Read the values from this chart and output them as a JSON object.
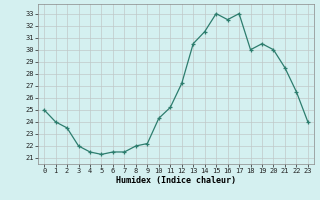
{
  "x": [
    0,
    1,
    2,
    3,
    4,
    5,
    6,
    7,
    8,
    9,
    10,
    11,
    12,
    13,
    14,
    15,
    16,
    17,
    18,
    19,
    20,
    21,
    22,
    23
  ],
  "y": [
    25,
    24,
    23.5,
    22,
    21.5,
    21.3,
    21.5,
    21.5,
    22,
    22.2,
    24.3,
    25.2,
    27.2,
    30.5,
    31.5,
    33.0,
    32.5,
    33.0,
    30.0,
    30.5,
    30.0,
    28.5,
    26.5,
    24.0
  ],
  "line_color": "#2d7d6e",
  "marker": "+",
  "bg_color": "#d4f0f0",
  "grid_color": "#c0c8c8",
  "xlabel": "Humidex (Indice chaleur)",
  "ylabel_ticks": [
    21,
    22,
    23,
    24,
    25,
    26,
    27,
    28,
    29,
    30,
    31,
    32,
    33
  ],
  "ylim": [
    20.5,
    33.8
  ],
  "xlim": [
    -0.5,
    23.5
  ],
  "xticks": [
    0,
    1,
    2,
    3,
    4,
    5,
    6,
    7,
    8,
    9,
    10,
    11,
    12,
    13,
    14,
    15,
    16,
    17,
    18,
    19,
    20,
    21,
    22,
    23
  ]
}
